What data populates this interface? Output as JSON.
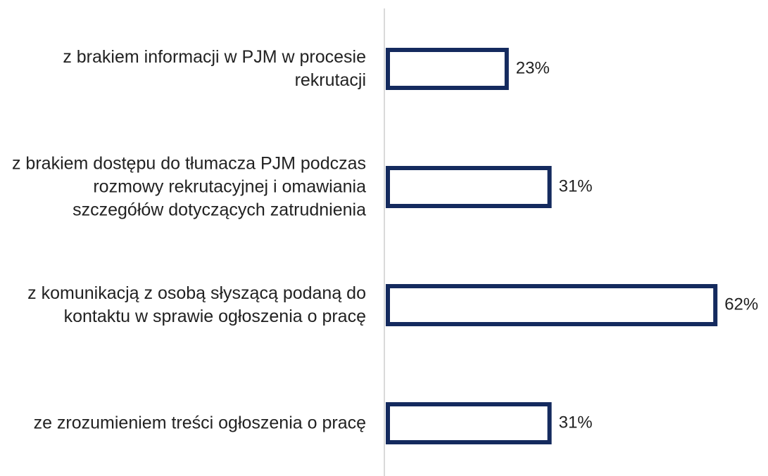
{
  "chart_data": {
    "type": "bar",
    "orientation": "horizontal",
    "categories": [
      "z brakiem informacji w PJM w procesie rekrutacji",
      "z brakiem dostępu do tłumacza PJM podczas rozmowy rekrutacyjnej i omawiania szczegółów dotyczących zatrudnienia",
      "z komunikacją z osobą słyszącą podaną do kontaktu w sprawie ogłoszenia o pracę",
      "ze zrozumieniem treści ogłoszenia o pracę"
    ],
    "values": [
      23,
      31,
      62,
      31
    ],
    "value_labels": [
      "23%",
      "31%",
      "62%",
      "31%"
    ],
    "color": "#142a5e",
    "xlim": [
      0,
      70
    ]
  }
}
